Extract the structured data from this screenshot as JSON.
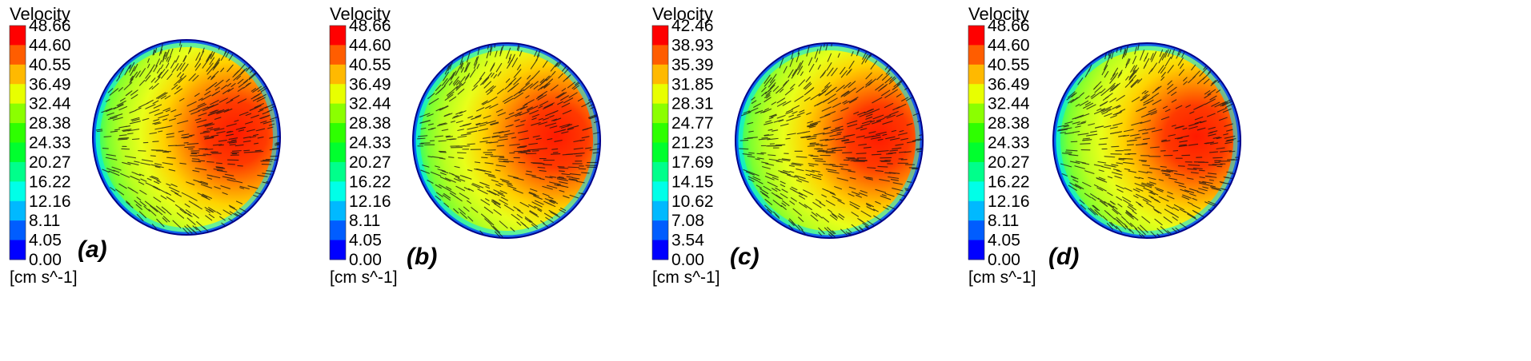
{
  "colors": [
    "#0000ff",
    "#005dff",
    "#00b9ff",
    "#00ffe8",
    "#00ff8b",
    "#00ff2e",
    "#2eff00",
    "#8bff00",
    "#e8ff00",
    "#ffb900",
    "#ff5d00",
    "#ff0000"
  ],
  "panels": [
    {
      "label": "(a)",
      "title": "Velocity",
      "units": "[cm s^-1]",
      "ticks": [
        "48.66",
        "44.60",
        "40.55",
        "36.49",
        "32.44",
        "28.38",
        "24.33",
        "20.27",
        "16.22",
        "12.16",
        "8.11",
        "4.05",
        "0.00"
      ]
    },
    {
      "label": "(b)",
      "title": "Velocity",
      "units": "[cm s^-1]",
      "ticks": [
        "48.66",
        "44.60",
        "40.55",
        "36.49",
        "32.44",
        "28.38",
        "24.33",
        "20.27",
        "16.22",
        "12.16",
        "8.11",
        "4.05",
        "0.00"
      ]
    },
    {
      "label": "(c)",
      "title": "Velocity",
      "units": "[cm s^-1]",
      "ticks": [
        "42.46",
        "38.93",
        "35.39",
        "31.85",
        "28.31",
        "24.77",
        "21.23",
        "17.69",
        "14.15",
        "10.62",
        "7.08",
        "3.54",
        "0.00"
      ]
    },
    {
      "label": "(d)",
      "title": "Velocity",
      "units": "[cm s^-1]",
      "ticks": [
        "48.66",
        "44.60",
        "40.55",
        "36.49",
        "32.44",
        "28.38",
        "24.33",
        "20.27",
        "16.22",
        "12.16",
        "8.11",
        "4.05",
        "0.00"
      ]
    }
  ]
}
